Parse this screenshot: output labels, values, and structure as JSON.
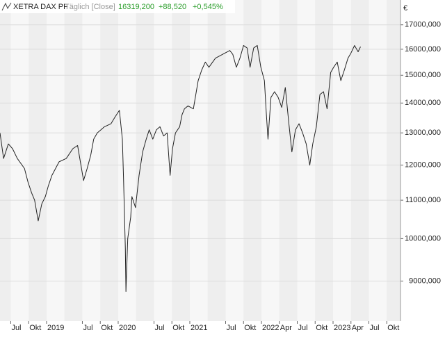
{
  "chart_data": {
    "type": "line",
    "title": "XETRA DAX PF",
    "subtitle": "Täglich [Close]",
    "last_value": "16319,200",
    "change": "+88,520",
    "change_pct": "+0,545%",
    "y_unit": "€",
    "log_scale": true,
    "grid": true,
    "xlim": [
      4.2,
      71.3
    ],
    "xticks": [
      {
        "value": 6,
        "label": "Jul"
      },
      {
        "value": 9,
        "label": "Okt"
      },
      {
        "value": 12,
        "label": "2019"
      },
      {
        "value": 18,
        "label": "Jul"
      },
      {
        "value": 21,
        "label": "Okt"
      },
      {
        "value": 24,
        "label": "2020"
      },
      {
        "value": 30,
        "label": "Jul"
      },
      {
        "value": 33,
        "label": "Okt"
      },
      {
        "value": 36,
        "label": "2021"
      },
      {
        "value": 42,
        "label": "Jul"
      },
      {
        "value": 45,
        "label": "Okt"
      },
      {
        "value": 48,
        "label": "2022"
      },
      {
        "value": 51,
        "label": "Apr"
      },
      {
        "value": 54,
        "label": "Jul"
      },
      {
        "value": 57,
        "label": "Okt"
      },
      {
        "value": 60,
        "label": "2023"
      },
      {
        "value": 63,
        "label": "Apr"
      },
      {
        "value": 66,
        "label": "Jul"
      },
      {
        "value": 69,
        "label": "Okt"
      }
    ],
    "ylim": [
      8150,
      18080
    ],
    "yticks": [
      {
        "value": 9000,
        "label": "9000,000"
      },
      {
        "value": 10000,
        "label": "10000,000"
      },
      {
        "value": 11000,
        "label": "11000,000"
      },
      {
        "value": 12000,
        "label": "12000,000"
      },
      {
        "value": 13000,
        "label": "13000,000"
      },
      {
        "value": 14000,
        "label": "14000,000"
      },
      {
        "value": 15000,
        "label": "15000,000"
      },
      {
        "value": 16000,
        "label": "16000,000"
      },
      {
        "value": 17000,
        "label": "17000,000"
      }
    ],
    "series": [
      {
        "name": "XETRA DAX PF",
        "color": "#222222",
        "x": [
          4.2,
          4.8,
          5.6,
          6.3,
          7.1,
          8.3,
          8.9,
          9.5,
          10.0,
          10.6,
          11.2,
          11.8,
          12.3,
          12.9,
          14.1,
          15.3,
          16.4,
          17.2,
          18.2,
          18.8,
          19.4,
          19.9,
          20.5,
          21.1,
          21.7,
          22.8,
          23.4,
          24.2,
          24.7,
          24.9,
          25.2,
          25.3,
          25.6,
          26.1,
          26.3,
          26.9,
          27.5,
          28.1,
          28.7,
          29.2,
          29.8,
          30.4,
          31.0,
          31.6,
          32.2,
          32.7,
          33.1,
          33.6,
          34.3,
          34.7,
          35.1,
          35.7,
          36.6,
          37.4,
          38.0,
          38.6,
          39.2,
          40.3,
          41.5,
          42.7,
          43.2,
          43.8,
          44.4,
          45.0,
          45.6,
          46.1,
          46.7,
          47.3,
          47.9,
          48.5,
          48.8,
          49.1,
          49.6,
          50.2,
          50.8,
          51.4,
          52.0,
          52.6,
          53.1,
          53.7,
          54.3,
          54.9,
          55.5,
          56.1,
          56.6,
          57.2,
          57.8,
          58.4,
          59.0,
          59.6,
          60.1,
          60.7,
          61.3,
          61.9,
          62.5,
          63.0,
          63.6,
          64.2,
          64.6
        ],
        "values": [
          13000,
          12200,
          12650,
          12500,
          12200,
          11900,
          11500,
          11200,
          11000,
          10450,
          10900,
          11100,
          11400,
          11700,
          12100,
          12200,
          12500,
          12600,
          11550,
          11900,
          12300,
          12800,
          13000,
          13100,
          13200,
          13300,
          13500,
          13750,
          12800,
          11600,
          9750,
          8770,
          10000,
          10550,
          11100,
          10800,
          11700,
          12400,
          12800,
          13100,
          12800,
          13100,
          13200,
          12900,
          13000,
          11700,
          12500,
          13000,
          13200,
          13600,
          13800,
          13900,
          13800,
          14800,
          15200,
          15500,
          15300,
          15650,
          15800,
          15950,
          15800,
          15300,
          15650,
          16150,
          16050,
          15300,
          16050,
          16150,
          15300,
          14800,
          13700,
          12800,
          14200,
          14400,
          14200,
          13850,
          14550,
          13300,
          12400,
          13100,
          13300,
          13000,
          12650,
          12000,
          12650,
          13200,
          14300,
          14400,
          13800,
          15100,
          15300,
          15500,
          14800,
          15200,
          15650,
          15850,
          16150,
          15900,
          16100
        ]
      }
    ]
  }
}
